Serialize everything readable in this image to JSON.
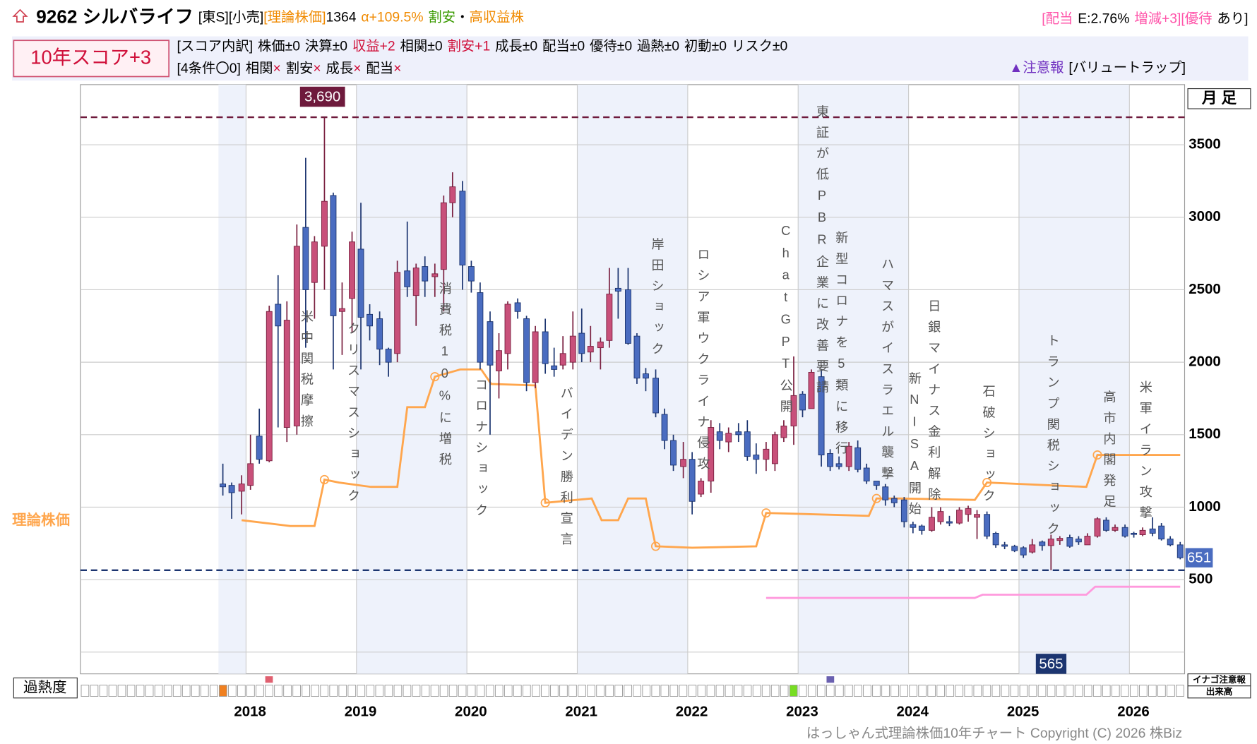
{
  "header": {
    "title": "9262 シルバライフ",
    "tags": "[東S][小売]",
    "theory_label": "[理論株価]",
    "theory_price": "1364",
    "alpha": "α+109.5%",
    "cheap": "割安",
    "separator": "・",
    "category": "高収益株",
    "dividend_label": "[配当",
    "dividend": "E:2.76%",
    "dividend_change": "増減+3]",
    "benefit_label": "[優待",
    "benefit": "あり]"
  },
  "score": {
    "total": "10年スコア+3",
    "breakdown_label": "[スコア内訳]",
    "items": [
      {
        "text": "株価±0"
      },
      {
        "text": "決算±0"
      },
      {
        "text": "収益+2",
        "color": "#d0103a"
      },
      {
        "text": "相関±0"
      },
      {
        "text": "割安+1",
        "color": "#d0103a"
      },
      {
        "text": "成長±0"
      },
      {
        "text": "配当±0"
      },
      {
        "text": "優待±0"
      },
      {
        "text": "過熱±0"
      },
      {
        "text": "初動±0"
      },
      {
        "text": "リスク±0"
      }
    ],
    "conditions_label": "[4条件〇0]",
    "conditions": [
      {
        "name": "相関",
        "mark": "×"
      },
      {
        "name": "割安",
        "mark": "×"
      },
      {
        "name": "成長",
        "mark": "×"
      },
      {
        "name": "配当",
        "mark": "×"
      }
    ],
    "warning": "▲注意報",
    "warning_detail": "[バリュートラップ]"
  },
  "chart_data": {
    "type": "candlestick",
    "up_color": "#c8507a",
    "down_color": "#4a6cc0",
    "x": [
      2017.79,
      2017.87,
      2017.96,
      2018.04,
      2018.12,
      2018.21,
      2018.29,
      2018.37,
      2018.46,
      2018.54,
      2018.62,
      2018.71,
      2018.79,
      2018.87,
      2018.96,
      2019.04,
      2019.12,
      2019.21,
      2019.29,
      2019.37,
      2019.46,
      2019.54,
      2019.62,
      2019.71,
      2019.79,
      2019.87,
      2019.96,
      2020.04,
      2020.12,
      2020.21,
      2020.29,
      2020.37,
      2020.46,
      2020.54,
      2020.62,
      2020.71,
      2020.79,
      2020.87,
      2020.96,
      2021.04,
      2021.12,
      2021.21,
      2021.29,
      2021.37,
      2021.46,
      2021.54,
      2021.62,
      2021.71,
      2021.79,
      2021.87,
      2021.96,
      2022.04,
      2022.12,
      2022.21,
      2022.29,
      2022.37,
      2022.46,
      2022.54,
      2022.62,
      2022.71,
      2022.79,
      2022.87,
      2022.96,
      2023.04,
      2023.12,
      2023.21,
      2023.29,
      2023.37,
      2023.46,
      2023.54,
      2023.62,
      2023.71,
      2023.79,
      2023.87,
      2023.96,
      2024.04,
      2024.12,
      2024.21,
      2024.29,
      2024.37,
      2024.46,
      2024.54,
      2024.62,
      2024.71,
      2024.79,
      2024.87,
      2024.96,
      2025.04,
      2025.12,
      2025.21,
      2025.29,
      2025.37,
      2025.46,
      2025.54,
      2025.62,
      2025.71,
      2025.79,
      2025.87,
      2025.96,
      2026.04,
      2026.12,
      2026.21,
      2026.29,
      2026.37,
      2026.46
    ],
    "open": [
      1160,
      1150,
      1110,
      1150,
      1490,
      1320,
      2400,
      1550,
      1560,
      2930,
      2550,
      2800,
      3150,
      2350,
      2440,
      2780,
      2330,
      2300,
      2090,
      2060,
      2630,
      2460,
      2660,
      2590,
      2640,
      3100,
      3180,
      2660,
      2480,
      2280,
      1940,
      2060,
      2410,
      2300,
      1860,
      2210,
      1975,
      1980,
      2000,
      2200,
      2070,
      2100,
      2150,
      2510,
      2500,
      2180,
      1920,
      1890,
      1640,
      1460,
      1280,
      1330,
      1090,
      1180,
      1520,
      1450,
      1520,
      1520,
      1360,
      1330,
      1300,
      1480,
      1560,
      1780,
      1680,
      1900,
      1370,
      1300,
      1280,
      1410,
      1270,
      1180,
      1140,
      1060,
      1050,
      880,
      870,
      840,
      900,
      900,
      890,
      950,
      930,
      950,
      820,
      740,
      730,
      720,
      690,
      760,
      735,
      770,
      790,
      780,
      740,
      800,
      910,
      840,
      860,
      820,
      810,
      850,
      870,
      780,
      740
    ],
    "high": [
      1300,
      1170,
      1220,
      1500,
      1680,
      2390,
      2600,
      2420,
      2950,
      3410,
      2870,
      3690,
      3170,
      2550,
      2900,
      3100,
      2400,
      2350,
      2100,
      2700,
      2970,
      2680,
      2730,
      2680,
      3150,
      3310,
      3250,
      2700,
      2550,
      2350,
      2200,
      2420,
      2440,
      2320,
      2250,
      2300,
      2100,
      2180,
      2350,
      2370,
      2250,
      2170,
      2650,
      2650,
      2650,
      2200,
      1960,
      1950,
      1680,
      1500,
      1450,
      1380,
      1200,
      1600,
      1580,
      1550,
      1580,
      1600,
      1440,
      1450,
      1520,
      1600,
      2040,
      1800,
      1950,
      1950,
      1400,
      1350,
      1450,
      1460,
      1300,
      1180,
      1160,
      1080,
      1070,
      900,
      880,
      1000,
      1000,
      940,
      1000,
      1010,
      980,
      970,
      830,
      760,
      740,
      730,
      780,
      770,
      810,
      800,
      810,
      800,
      820,
      930,
      930,
      880,
      880,
      830,
      860,
      930,
      890,
      800,
      760
    ],
    "low": [
      1080,
      920,
      950,
      1120,
      1300,
      1310,
      1550,
      1450,
      1500,
      2100,
      2300,
      2500,
      1950,
      2050,
      2200,
      1950,
      2150,
      1980,
      1900,
      2000,
      2450,
      2250,
      2450,
      2450,
      2350,
      3000,
      2500,
      2480,
      1950,
      1500,
      1750,
      1950,
      2300,
      1800,
      1820,
      1920,
      1900,
      1950,
      1950,
      2000,
      2000,
      1950,
      2100,
      2300,
      2120,
      1850,
      1800,
      1620,
      1400,
      1250,
      1200,
      950,
      1070,
      1100,
      1400,
      1380,
      1450,
      1320,
      1230,
      1250,
      1250,
      1450,
      1430,
      1620,
      1680,
      1280,
      1250,
      1260,
      1250,
      1240,
      1160,
      1120,
      1010,
      1000,
      860,
      820,
      810,
      830,
      880,
      870,
      880,
      900,
      780,
      780,
      720,
      710,
      690,
      650,
      680,
      700,
      565,
      740,
      720,
      740,
      740,
      790,
      830,
      830,
      790,
      790,
      800,
      800,
      770,
      730,
      640
    ],
    "close": [
      1140,
      1100,
      1160,
      1300,
      1330,
      2350,
      2250,
      2290,
      2800,
      2500,
      2830,
      3110,
      2320,
      2370,
      2830,
      2310,
      2250,
      2090,
      2000,
      2620,
      2520,
      2650,
      2560,
      2610,
      3100,
      3210,
      2670,
      2560,
      2000,
      1980,
      2080,
      2400,
      2350,
      1860,
      2210,
      1990,
      1950,
      2060,
      2180,
      2060,
      2110,
      2140,
      2470,
      2490,
      2130,
      1890,
      1890,
      1650,
      1460,
      1290,
      1330,
      1040,
      1180,
      1550,
      1460,
      1510,
      1500,
      1350,
      1330,
      1400,
      1500,
      1560,
      1770,
      1670,
      1930,
      1360,
      1280,
      1280,
      1420,
      1260,
      1180,
      1150,
      1050,
      1030,
      900,
      860,
      840,
      930,
      970,
      890,
      980,
      990,
      950,
      800,
      740,
      730,
      700,
      670,
      740,
      735,
      780,
      785,
      730,
      760,
      800,
      920,
      840,
      860,
      800,
      815,
      840,
      820,
      780,
      740,
      651
    ],
    "lines": [
      {
        "name": "理論株価",
        "color": "#ffa64d",
        "x": [
          2017.96,
          2018.18,
          2018.4,
          2018.62,
          2018.71,
          2018.84,
          2019.13,
          2019.37,
          2019.46,
          2019.62,
          2019.71,
          2019.94,
          2020.13,
          2020.22,
          2020.62,
          2020.71,
          2021.13,
          2021.22,
          2021.37,
          2021.46,
          2021.62,
          2021.71,
          2022.04,
          2022.62,
          2022.71,
          2023.64,
          2023.71,
          2023.93,
          2024.6,
          2024.71,
          2025.61,
          2025.71,
          2026.46
        ],
        "values": [
          910,
          890,
          870,
          870,
          1190,
          1170,
          1140,
          1140,
          1690,
          1690,
          1900,
          1950,
          1950,
          1850,
          1840,
          1030,
          1060,
          910,
          910,
          1060,
          1060,
          730,
          720,
          730,
          960,
          940,
          1060,
          1060,
          1050,
          1170,
          1140,
          1360,
          1360
        ]
      },
      {
        "color": "#ff99dd",
        "x": [
          2022.71,
          2024.6,
          2024.67,
          2025.61,
          2025.69,
          2026.46
        ],
        "values": [
          374,
          374,
          396,
          396,
          451,
          451
        ]
      }
    ],
    "reference_lines": [
      {
        "value": 3690,
        "label": "3,690",
        "color": "#6e1a3c"
      },
      {
        "value": 565,
        "color": "#1c3570"
      }
    ],
    "annotations": [
      "米中関税摩擦",
      "クリスマスショック",
      "消費税10%に増税",
      "コロナショック",
      "バイデン勝利宣言",
      "岸田ショック",
      "ロシア軍ウクライナ侵攻",
      "ChatGPT公開",
      "東証が低PBR企業に改善要請",
      "新型コロナを5類に移行",
      "ハマスがイスラエル襲撃",
      "新NISA開始",
      "日銀マイナス金利解除",
      "石破ショック",
      "トランプ関税ショック",
      "高市内閣発足",
      "米軍イラン攻撃"
    ],
    "xlim": [
      2016.5,
      2026.5
    ],
    "xticks": [
      2018,
      2019,
      2020,
      2021,
      2022,
      2023,
      2024,
      2025,
      2026
    ],
    "ylim": [
      -150,
      3915
    ],
    "yticks": [
      500,
      1000,
      1500,
      2000,
      2500,
      3000,
      3500
    ],
    "grid": true
  },
  "controls": {
    "period": "月 足",
    "overheat": "過熱度",
    "inago": "イナゴ注意報",
    "volume": "出来高"
  },
  "footer": "はっしゃん式理論株価10年チャート Copyright (C) 2026 株Biz"
}
